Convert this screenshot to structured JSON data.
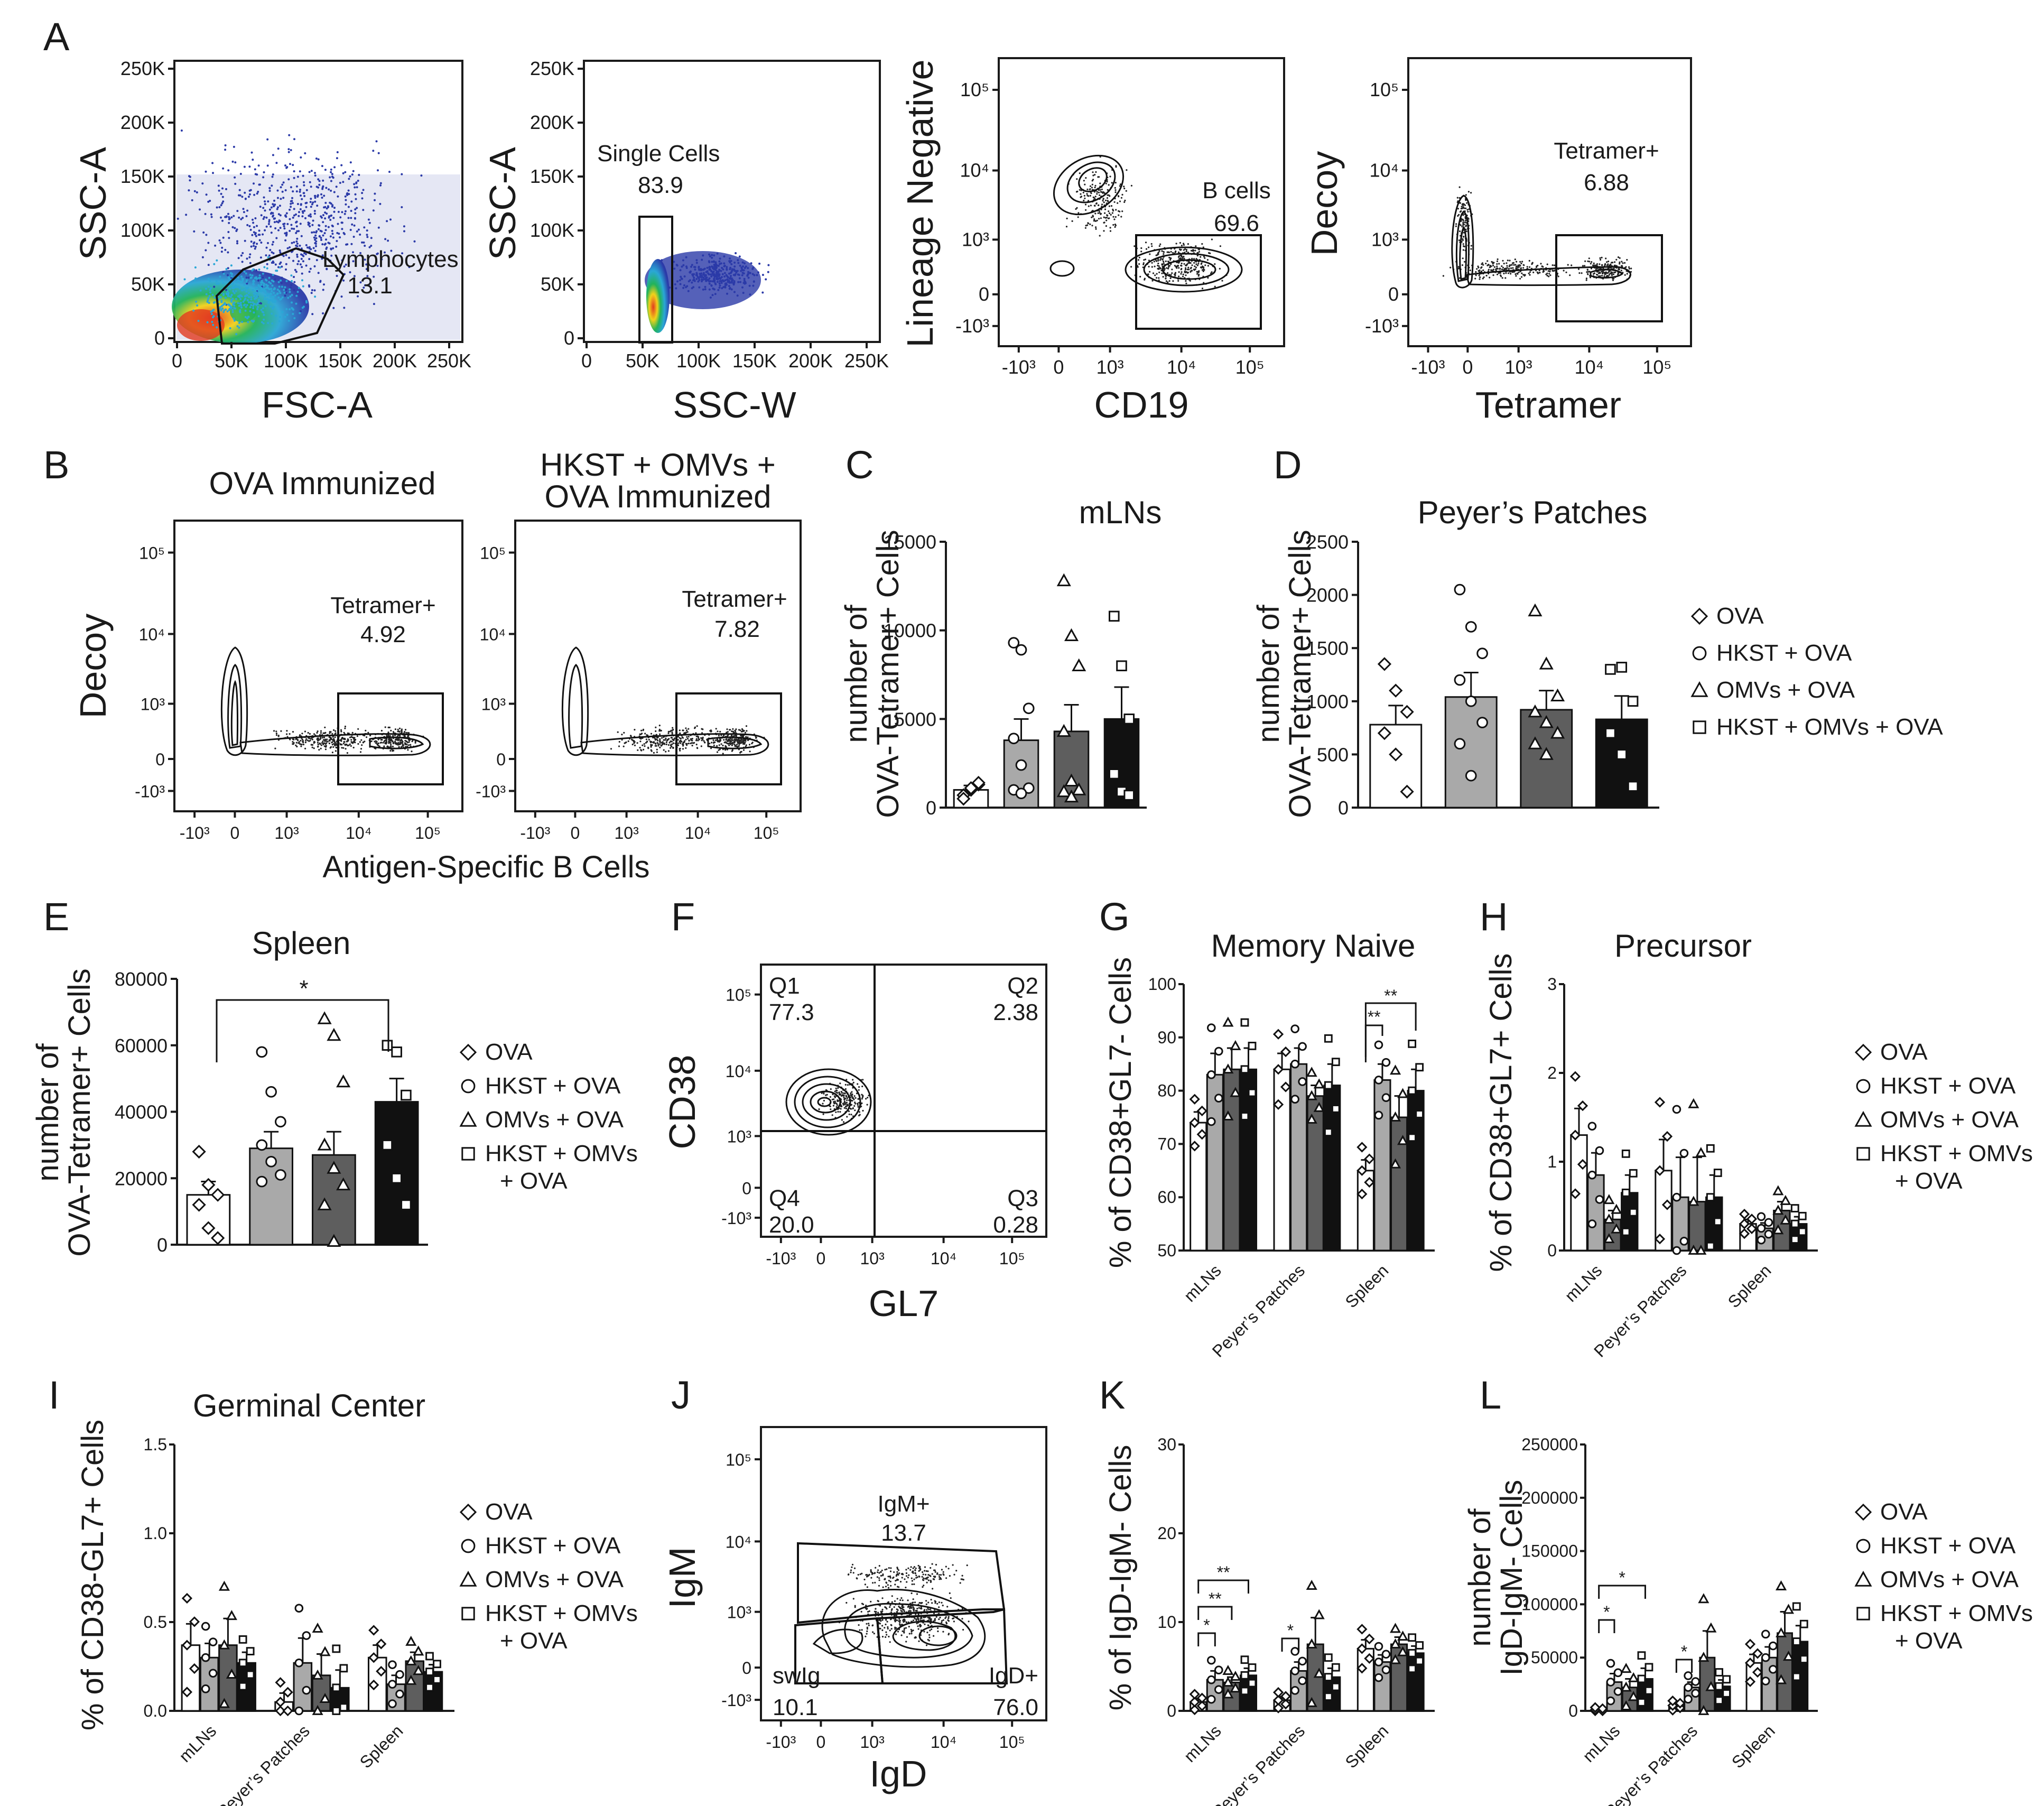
{
  "panel_letters": [
    "A",
    "B",
    "C",
    "D",
    "E",
    "F",
    "G",
    "H",
    "I",
    "J",
    "K",
    "L"
  ],
  "colors": {
    "ova": "#ffffff",
    "hkst": "#a9a9a9",
    "omvs": "#5e5e5e",
    "hkst_omvs": "#111111",
    "density_high": "#e23a1f",
    "density_mid": "#22b35a",
    "density_low": "#2b3aa8"
  },
  "legend": {
    "items": [
      "OVA",
      "HKST + OVA",
      "OMVs + OVA",
      "HKST + OMVs + OVA"
    ],
    "item4_line1": "HKST + OMVs",
    "item4_line2": "+ OVA",
    "symbols": [
      "diamond-icon",
      "circle-icon",
      "triangle-icon",
      "square-icon"
    ]
  },
  "panelA": {
    "plot1": {
      "xlabel": "FSC-A",
      "ylabel": "SSC-A",
      "xticks": [
        "0",
        "50K",
        "100K",
        "150K",
        "200K",
        "250K"
      ],
      "yticks": [
        "0",
        "50K",
        "100K",
        "150K",
        "200K",
        "250K"
      ],
      "gate_name": "Lymphocytes",
      "gate_value": "13.1"
    },
    "plot2": {
      "xlabel": "SSC-W",
      "ylabel": "SSC-A",
      "xticks": [
        "0",
        "50K",
        "100K",
        "150K",
        "200K",
        "250K"
      ],
      "yticks": [
        "0",
        "50K",
        "100K",
        "150K",
        "200K",
        "250K"
      ],
      "gate_name": "Single Cells",
      "gate_value": "83.9"
    },
    "plot3": {
      "xlabel": "CD19",
      "ylabel": "Lineage Negative",
      "gate_name": "B cells",
      "gate_value": "69.6"
    },
    "plot4": {
      "xlabel": "Tetramer",
      "ylabel": "Decoy",
      "gate_name": "Tetramer+",
      "gate_value": "6.88"
    },
    "log_ticks": [
      "-10³",
      "0",
      "10³",
      "10⁴",
      "10⁵"
    ]
  },
  "panelB": {
    "title1": "OVA Immunized",
    "title2_line1": "HKST + OMVs +",
    "title2_line2": "OVA Immunized",
    "ylabel": "Decoy",
    "xlabel": "Antigen-Specific B Cells",
    "gate_name": "Tetramer+",
    "value1": "4.92",
    "value2": "7.82"
  },
  "chart_data": [
    {
      "panel": "C",
      "type": "bar",
      "title": "mLNs",
      "ylabel_line1": "number of",
      "ylabel_line2": "OVA-Tetramer+ Cells",
      "categories": [
        "OVA",
        "HKST + OVA",
        "OMVs + OVA",
        "HKST + OMVs + OVA"
      ],
      "values": [
        1000,
        3800,
        4300,
        5000
      ],
      "errors": [
        250,
        1200,
        1500,
        1800
      ],
      "points": [
        [
          700,
          1000,
          1300,
          500,
          1100,
          1400
        ],
        [
          9300,
          8900,
          5600,
          3900,
          2400,
          1100,
          1000,
          800
        ],
        [
          12800,
          9700,
          8000,
          4300,
          1500,
          1000,
          900,
          600
        ],
        [
          10800,
          8000,
          5000,
          1900,
          900,
          700
        ]
      ],
      "ylim": [
        0,
        15000
      ],
      "yticks": [
        "0",
        "5000",
        "10000",
        "15000"
      ]
    },
    {
      "panel": "D",
      "type": "bar",
      "title": "Peyer’s Patches",
      "ylabel_line1": "number of",
      "ylabel_line2": "OVA-Tetramer+ Cells",
      "categories": [
        "OVA",
        "HKST + OVA",
        "OMVs + OVA",
        "HKST + OMVs + OVA"
      ],
      "values": [
        780,
        1040,
        920,
        830
      ],
      "errors": [
        180,
        230,
        180,
        220
      ],
      "points": [
        [
          1350,
          1100,
          900,
          700,
          500,
          150
        ],
        [
          2050,
          1700,
          1450,
          1200,
          1000,
          800,
          600,
          300
        ],
        [
          1850,
          1350,
          1050,
          900,
          800,
          700,
          600,
          500
        ],
        [
          1300,
          1320,
          1000,
          700,
          500,
          200
        ]
      ],
      "ylim": [
        0,
        2500
      ],
      "yticks": [
        "0",
        "500",
        "1000",
        "1500",
        "2000",
        "2500"
      ]
    },
    {
      "panel": "E",
      "type": "bar",
      "title": "Spleen",
      "ylabel_line1": "number of",
      "ylabel_line2": "OVA-Tetramer+ Cells",
      "categories": [
        "OVA",
        "HKST + OVA",
        "OMVs + OVA",
        "HKST + OMVs + OVA"
      ],
      "values": [
        15000,
        29000,
        27000,
        43000
      ],
      "errors": [
        4000,
        5000,
        7000,
        7000
      ],
      "points": [
        [
          28000,
          18000,
          15000,
          12000,
          5000,
          2000
        ],
        [
          58000,
          46000,
          37000,
          30000,
          25000,
          21000,
          19000
        ],
        [
          68000,
          63000,
          49000,
          30000,
          23000,
          18000,
          12000,
          1000
        ],
        [
          60000,
          58000,
          45000,
          30000,
          20000,
          12000
        ]
      ],
      "ylim": [
        0,
        80000
      ],
      "yticks": [
        "0",
        "20000",
        "40000",
        "60000",
        "80000"
      ],
      "significance": "*"
    },
    {
      "panel": "G",
      "type": "grouped-bar",
      "title": "Memory Naive",
      "ylabel": "% of CD38+GL7- Cells",
      "groups": [
        "mLNs",
        "Peyer’s Patches",
        "Spleen"
      ],
      "series": [
        {
          "name": "OVA",
          "values": [
            74,
            84,
            65
          ]
        },
        {
          "name": "HKST + OVA",
          "values": [
            83,
            85,
            82
          ]
        },
        {
          "name": "OMVs + OVA",
          "values": [
            84,
            79,
            75
          ]
        },
        {
          "name": "HKST + OMVs + OVA",
          "values": [
            84,
            81,
            80
          ]
        }
      ],
      "errors": [
        [
          2,
          3,
          2
        ],
        [
          4,
          3,
          3
        ],
        [
          4,
          2,
          4
        ],
        [
          4,
          4,
          4
        ]
      ],
      "ylim": [
        50,
        100
      ],
      "yticks": [
        "50",
        "60",
        "70",
        "80",
        "90",
        "100"
      ],
      "significance": [
        "**",
        "**"
      ]
    },
    {
      "panel": "H",
      "type": "grouped-bar",
      "title": "Precursor",
      "ylabel": "% of CD38+GL7+ Cells",
      "groups": [
        "mLNs",
        "Peyer’s Patches",
        "Spleen"
      ],
      "series": [
        {
          "name": "OVA",
          "values": [
            1.3,
            0.9,
            0.3
          ]
        },
        {
          "name": "HKST + OVA",
          "values": [
            0.85,
            0.6,
            0.25
          ]
        },
        {
          "name": "OMVs + OVA",
          "values": [
            0.35,
            0.55,
            0.45
          ]
        },
        {
          "name": "HKST + OMVs + OVA",
          "values": [
            0.65,
            0.6,
            0.3
          ]
        }
      ],
      "errors": [
        [
          0.3,
          0.35,
          0.05
        ],
        [
          0.25,
          0.45,
          0.06
        ],
        [
          0.1,
          0.5,
          0.1
        ],
        [
          0.2,
          0.25,
          0.08
        ]
      ],
      "ylim": [
        0,
        3
      ],
      "yticks": [
        "0",
        "1",
        "2",
        "3"
      ]
    },
    {
      "panel": "I",
      "type": "grouped-bar",
      "title": "Germinal Center",
      "ylabel": "% of CD38-GL7+ Cells",
      "groups": [
        "mLNs",
        "Peyer’s Patches",
        "Spleen"
      ],
      "series": [
        {
          "name": "OVA",
          "values": [
            0.37,
            0.05,
            0.3
          ]
        },
        {
          "name": "HKST + OVA",
          "values": [
            0.3,
            0.27,
            0.15
          ]
        },
        {
          "name": "OMVs + OVA",
          "values": [
            0.37,
            0.2,
            0.28
          ]
        },
        {
          "name": "HKST + OMVs + OVA",
          "values": [
            0.27,
            0.13,
            0.22
          ]
        }
      ],
      "errors": [
        [
          0.12,
          0.05,
          0.07
        ],
        [
          0.08,
          0.14,
          0.05
        ],
        [
          0.15,
          0.12,
          0.05
        ],
        [
          0.06,
          0.1,
          0.04
        ]
      ],
      "ylim": [
        0,
        1.5
      ],
      "yticks": [
        "0.0",
        "0.5",
        "1.0",
        "1.5"
      ]
    },
    {
      "panel": "K",
      "type": "grouped-bar",
      "title": "",
      "ylabel": "% of IgD-IgM- Cells",
      "groups": [
        "mLNs",
        "Peyer’s Patches",
        "Spleen"
      ],
      "series": [
        {
          "name": "OVA",
          "values": [
            1,
            1.2,
            7
          ]
        },
        {
          "name": "HKST + OVA",
          "values": [
            3.5,
            4.5,
            5.5
          ]
        },
        {
          "name": "OMVs + OVA",
          "values": [
            3.2,
            7.5,
            7.5
          ]
        },
        {
          "name": "HKST + OMVs + OVA",
          "values": [
            4,
            3.8,
            6.5
          ]
        }
      ],
      "errors": [
        [
          0.4,
          0.4,
          1
        ],
        [
          1,
          1,
          0.8
        ],
        [
          0.6,
          3,
          0.8
        ],
        [
          0.8,
          1,
          0.8
        ]
      ],
      "ylim": [
        0,
        30
      ],
      "yticks": [
        "0",
        "10",
        "20",
        "30"
      ],
      "significance": [
        "**",
        "**",
        "*",
        "*"
      ]
    },
    {
      "panel": "L",
      "type": "grouped-bar",
      "title": "",
      "ylabel_line1": "number of",
      "ylabel_line2": "IgD-IgM- Cells",
      "groups": [
        "mLNs",
        "Peyer’s Patches",
        "Spleen"
      ],
      "series": [
        {
          "name": "OVA",
          "values": [
            1000,
            5000,
            45000
          ]
        },
        {
          "name": "HKST + OVA",
          "values": [
            27000,
            22000,
            50000
          ]
        },
        {
          "name": "OMVs + OVA",
          "values": [
            22000,
            50000,
            73000
          ]
        },
        {
          "name": "HKST + OMVs + OVA",
          "values": [
            30000,
            23000,
            65000
          ]
        }
      ],
      "errors": [
        [
          1000,
          2000,
          8000
        ],
        [
          8000,
          5000,
          10000
        ],
        [
          8000,
          25000,
          20000
        ],
        [
          10000,
          6000,
          15000
        ]
      ],
      "ylim": [
        0,
        250000
      ],
      "yticks": [
        "0",
        "50000",
        "100000",
        "150000",
        "200000",
        "250000"
      ],
      "significance": [
        "*",
        "*",
        "*"
      ]
    }
  ],
  "panelF": {
    "xlabel": "GL7",
    "ylabel": "CD38",
    "quadrants": [
      {
        "name": "Q1",
        "value": "77.3"
      },
      {
        "name": "Q2",
        "value": "2.38"
      },
      {
        "name": "Q3",
        "value": "0.28"
      },
      {
        "name": "Q4",
        "value": "20.0"
      }
    ]
  },
  "panelJ": {
    "xlabel": "IgD",
    "ylabel": "IgM",
    "gates": [
      {
        "name": "IgM+",
        "value": "13.7"
      },
      {
        "name": "swIg",
        "value": "10.1"
      },
      {
        "name": "IgD+",
        "value": "76.0"
      }
    ]
  }
}
